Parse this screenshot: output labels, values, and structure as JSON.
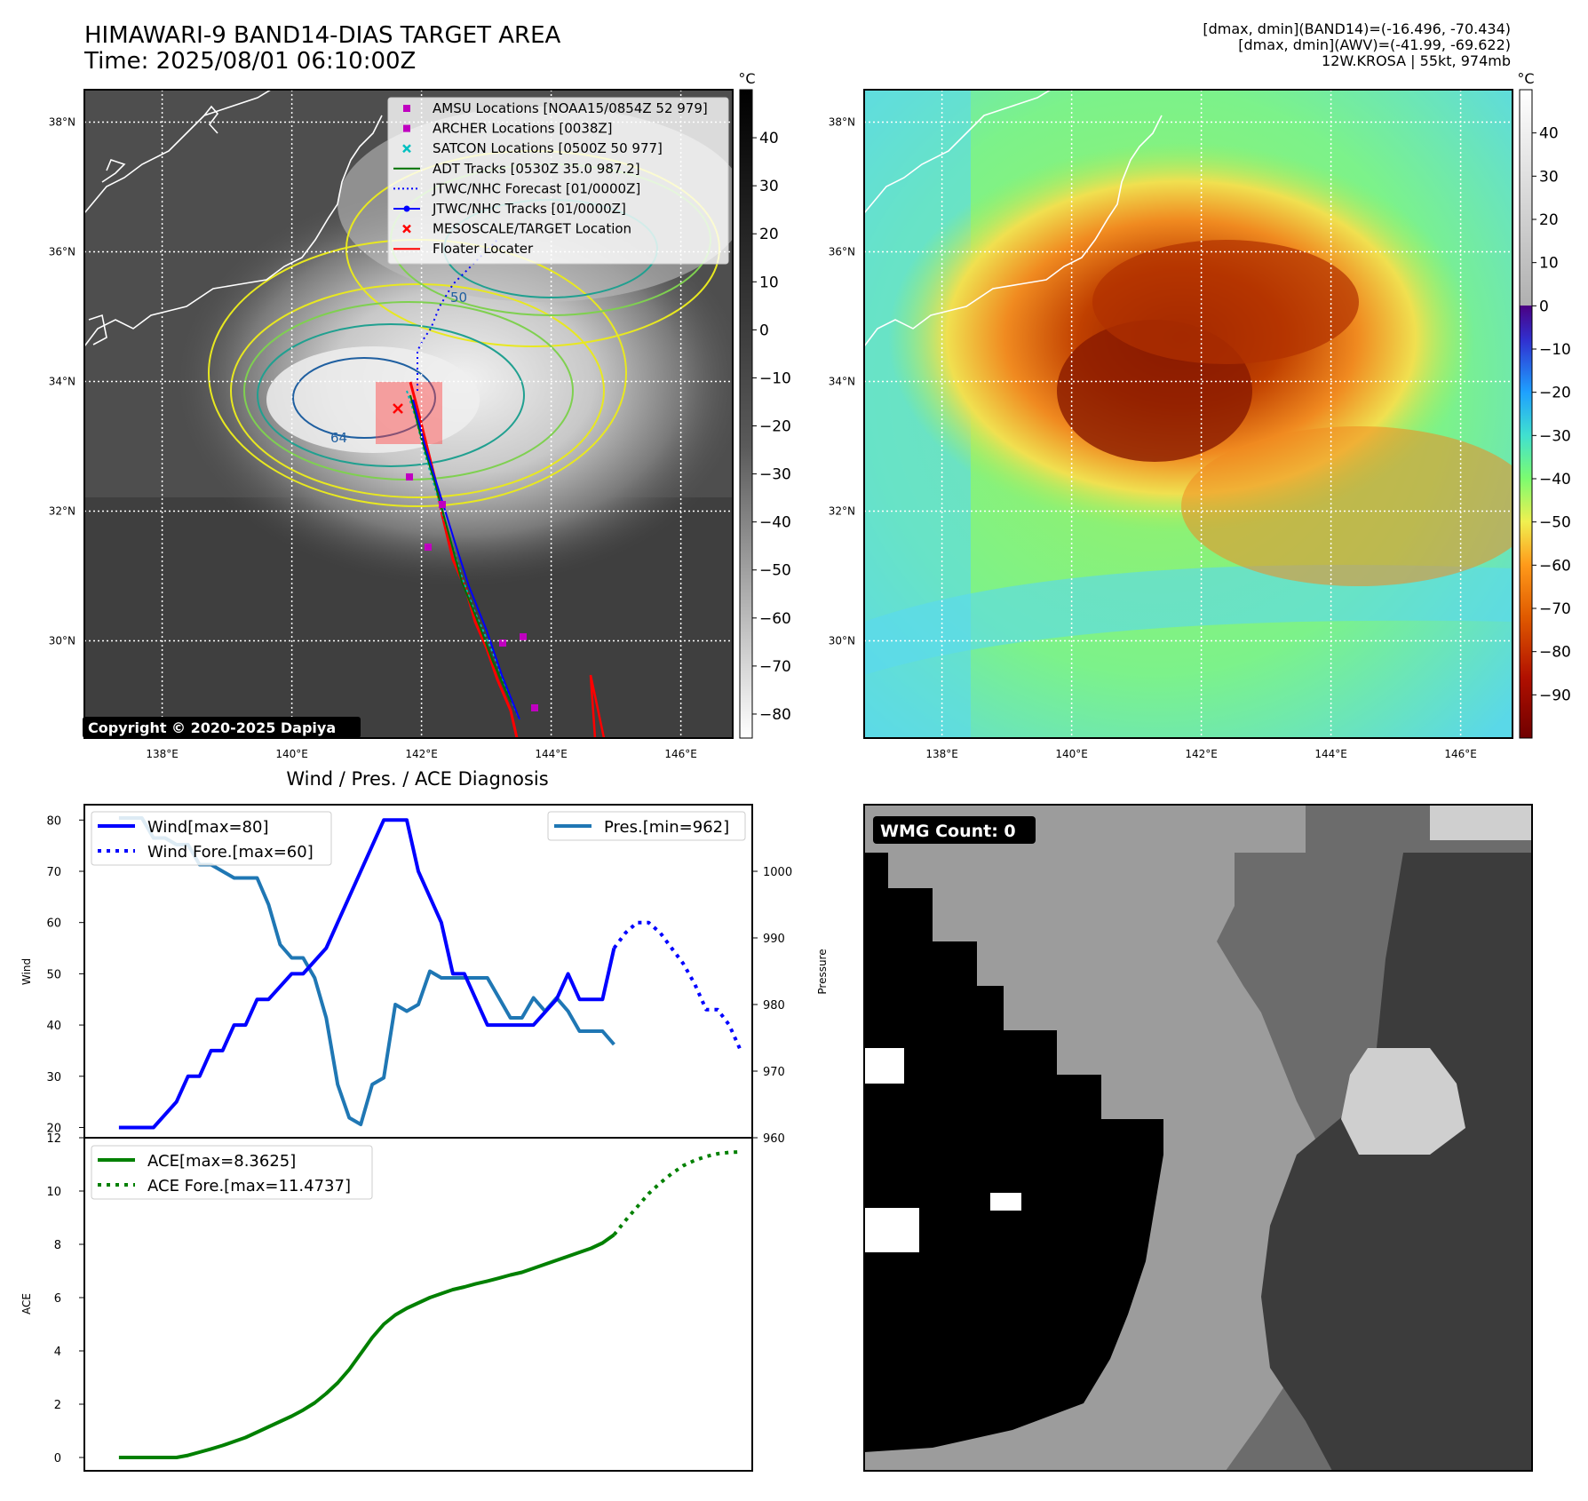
{
  "header": {
    "title_line1": "HIMAWARI-9 BAND14-DIAS TARGET AREA",
    "title_line2": "Time: 2025/08/01 06:10:00Z",
    "info_line1": "[dmax, dmin](BAND14)=(-16.496, -70.434)",
    "info_line2": "[dmax, dmin](AWV)=(-41.99, -69.622)",
    "info_line3": "12W.KROSA | 55kt, 974mb"
  },
  "map_axes": {
    "lon_ticks": [
      "138°E",
      "140°E",
      "142°E",
      "144°E",
      "146°E"
    ],
    "lat_ticks": [
      "38°N",
      "36°N",
      "34°N",
      "32°N",
      "30°N"
    ],
    "lon_values": [
      138,
      140,
      142,
      144,
      146
    ],
    "lat_values": [
      38,
      36,
      34,
      32,
      30
    ],
    "lon_range": [
      136.8,
      146.8
    ],
    "lat_range": [
      28.5,
      38.5
    ]
  },
  "colorbar_ir": {
    "unit": "°C",
    "ticks": [
      "40",
      "30",
      "20",
      "10",
      "0",
      "−10",
      "−20",
      "−30",
      "−40",
      "−50",
      "−60",
      "−70",
      "−80"
    ],
    "range": [
      -85,
      50
    ]
  },
  "colorbar_wv": {
    "unit": "°C",
    "ticks": [
      "40",
      "30",
      "20",
      "10",
      "0",
      "−10",
      "−20",
      "−30",
      "−40",
      "−50",
      "−60",
      "−70",
      "−80",
      "−90"
    ],
    "range": [
      -100,
      50
    ]
  },
  "legend_ir": [
    {
      "label": "AMSU Locations [NOAA15/0854Z 52 979]",
      "marker": "square",
      "color": "#c000c0"
    },
    {
      "label": "ARCHER Locations [0038Z]",
      "marker": "square",
      "color": "#c000c0"
    },
    {
      "label": "SATCON Locations [0500Z 50 977]",
      "marker": "x",
      "color": "#00c0c0"
    },
    {
      "label": "ADT Tracks [0530Z 35.0 987.2]",
      "marker": "line",
      "color": "#007000"
    },
    {
      "label": "JTWC/NHC Forecast [01/0000Z]",
      "marker": "dotted",
      "color": "#0000ff"
    },
    {
      "label": "JTWC/NHC Tracks [01/0000Z]",
      "marker": "line-dot",
      "color": "#0000ff"
    },
    {
      "label": "MESOSCALE/TARGET Location",
      "marker": "x",
      "color": "#ff0000"
    },
    {
      "label": "Floater Locater",
      "marker": "line",
      "color": "#ff0000"
    }
  ],
  "copyright": "Copyright © 2020-2025 Dapiya",
  "contour_labels": [
    "64",
    "50"
  ],
  "diagnosis_title": "Wind / Pres. / ACE Diagnosis",
  "wmg_label": "WMG Count: 0",
  "chart_data": [
    {
      "type": "line",
      "title": "Wind / Pres. / ACE Diagnosis",
      "ylabel": "Wind",
      "ylabel_right": "Pressure",
      "ylim": [
        18,
        83
      ],
      "ylim_right": [
        960,
        1010
      ],
      "yticks": [
        20,
        30,
        40,
        50,
        60,
        70,
        80
      ],
      "yticks_right": [
        960,
        970,
        980,
        990,
        1000
      ],
      "series": [
        {
          "name": "Wind[max=80]",
          "style": "solid",
          "color": "#0000ff",
          "axis": "left",
          "x": [
            0,
            3,
            5,
            6,
            7,
            8,
            9,
            10,
            11,
            12,
            13,
            15,
            16,
            18,
            19,
            20,
            22,
            23,
            25,
            26,
            28,
            29,
            30,
            31,
            32,
            33,
            35,
            36,
            38,
            39,
            40,
            41,
            42,
            43
          ],
          "values": [
            20,
            20,
            25,
            30,
            30,
            35,
            35,
            40,
            40,
            45,
            45,
            50,
            50,
            55,
            60,
            65,
            75,
            80,
            80,
            70,
            60,
            50,
            50,
            45,
            40,
            40,
            40,
            40,
            45,
            50,
            45,
            45,
            45,
            55
          ]
        },
        {
          "name": "Wind Fore.[max=60]",
          "style": "dotted",
          "color": "#0000ff",
          "axis": "left",
          "x": [
            43,
            44,
            45,
            46,
            47,
            48,
            49,
            50,
            51,
            52,
            53,
            54
          ],
          "values": [
            55,
            58,
            60,
            60,
            58,
            55,
            52,
            48,
            43,
            43,
            40,
            35
          ]
        },
        {
          "name": "Pres.[min=962]",
          "style": "solid",
          "color": "#1f77b4",
          "axis": "right",
          "x": [
            0,
            2,
            3,
            4,
            5,
            6,
            7,
            8,
            10,
            11,
            12,
            13,
            14,
            15,
            16,
            17,
            18,
            19,
            20,
            21,
            22,
            23,
            24,
            25,
            26,
            27,
            28,
            29,
            30,
            31,
            32,
            33,
            34,
            35,
            36,
            37,
            38,
            39,
            40,
            41,
            42,
            43
          ],
          "values": [
            1008,
            1008,
            1005,
            1005,
            1004,
            1004,
            1001,
            1001,
            999,
            999,
            999,
            995,
            989,
            987,
            987,
            984,
            978,
            968,
            963,
            962,
            968,
            969,
            980,
            979,
            980,
            985,
            984,
            984,
            984,
            984,
            984,
            981,
            978,
            978,
            981,
            979,
            981,
            979,
            976,
            976,
            976,
            974
          ]
        }
      ]
    },
    {
      "type": "line",
      "ylabel": "ACE",
      "ylim": [
        -0.5,
        12
      ],
      "yticks": [
        0,
        2,
        4,
        6,
        8,
        10,
        12
      ],
      "series": [
        {
          "name": "ACE[max=8.3625]",
          "style": "solid",
          "color": "#008000",
          "x": [
            0,
            1,
            2,
            3,
            4,
            5,
            6,
            7,
            8,
            9,
            10,
            11,
            12,
            13,
            14,
            15,
            16,
            17,
            18,
            19,
            20,
            21,
            22,
            23,
            24,
            25,
            26,
            27,
            28,
            29,
            30,
            31,
            32,
            33,
            34,
            35,
            36,
            37,
            38,
            39,
            40,
            41,
            42,
            43
          ],
          "values": [
            0,
            0,
            0,
            0,
            0,
            0,
            0.08,
            0.2,
            0.32,
            0.45,
            0.6,
            0.75,
            0.95,
            1.15,
            1.35,
            1.55,
            1.78,
            2.05,
            2.4,
            2.8,
            3.3,
            3.9,
            4.5,
            5,
            5.35,
            5.6,
            5.8,
            6,
            6.15,
            6.3,
            6.4,
            6.52,
            6.62,
            6.73,
            6.85,
            6.95,
            7.1,
            7.25,
            7.4,
            7.55,
            7.7,
            7.85,
            8.05,
            8.36
          ]
        },
        {
          "name": "ACE Fore.[max=11.4737]",
          "style": "dotted",
          "color": "#008000",
          "x": [
            43,
            44,
            45,
            46,
            47,
            48,
            49,
            50,
            51,
            52,
            53,
            54
          ],
          "values": [
            8.36,
            8.9,
            9.4,
            9.9,
            10.3,
            10.65,
            10.95,
            11.15,
            11.3,
            11.4,
            11.45,
            11.47
          ]
        }
      ]
    }
  ]
}
